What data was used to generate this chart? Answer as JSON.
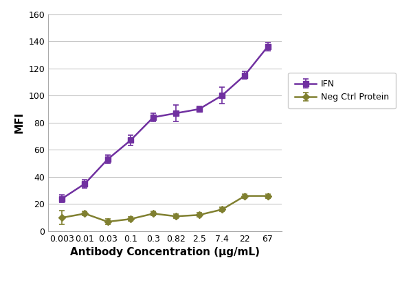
{
  "x_labels": [
    "0.003",
    "0.01",
    "0.03",
    "0.1",
    "0.3",
    "0.82",
    "2.5",
    "7.4",
    "22",
    "67"
  ],
  "x_positions": [
    1,
    2,
    3,
    4,
    5,
    6,
    7,
    8,
    9,
    10
  ],
  "ifn_y": [
    24,
    35,
    53,
    67,
    84,
    87,
    90,
    100,
    115,
    136
  ],
  "ifn_yerr": [
    3,
    3,
    3,
    4,
    3,
    6,
    2,
    6,
    3,
    3
  ],
  "neg_y": [
    10,
    13,
    7,
    9,
    13,
    11,
    12,
    16,
    26,
    26
  ],
  "neg_yerr": [
    5,
    1.5,
    2,
    1.5,
    1.5,
    1.5,
    1.5,
    1.5,
    1.5,
    1.5
  ],
  "ifn_color": "#7030A0",
  "neg_color": "#808030",
  "ifn_label": "IFN",
  "neg_label": "Neg Ctrl Protein",
  "xlabel": "Antibody Concentration (μg/mL)",
  "ylabel": "MFI",
  "ylim": [
    0,
    160
  ],
  "yticks": [
    0,
    20,
    40,
    60,
    80,
    100,
    120,
    140,
    160
  ],
  "bg_color": "#ffffff",
  "plot_bg_color": "#ffffff",
  "grid_color": "#c8c8c8"
}
